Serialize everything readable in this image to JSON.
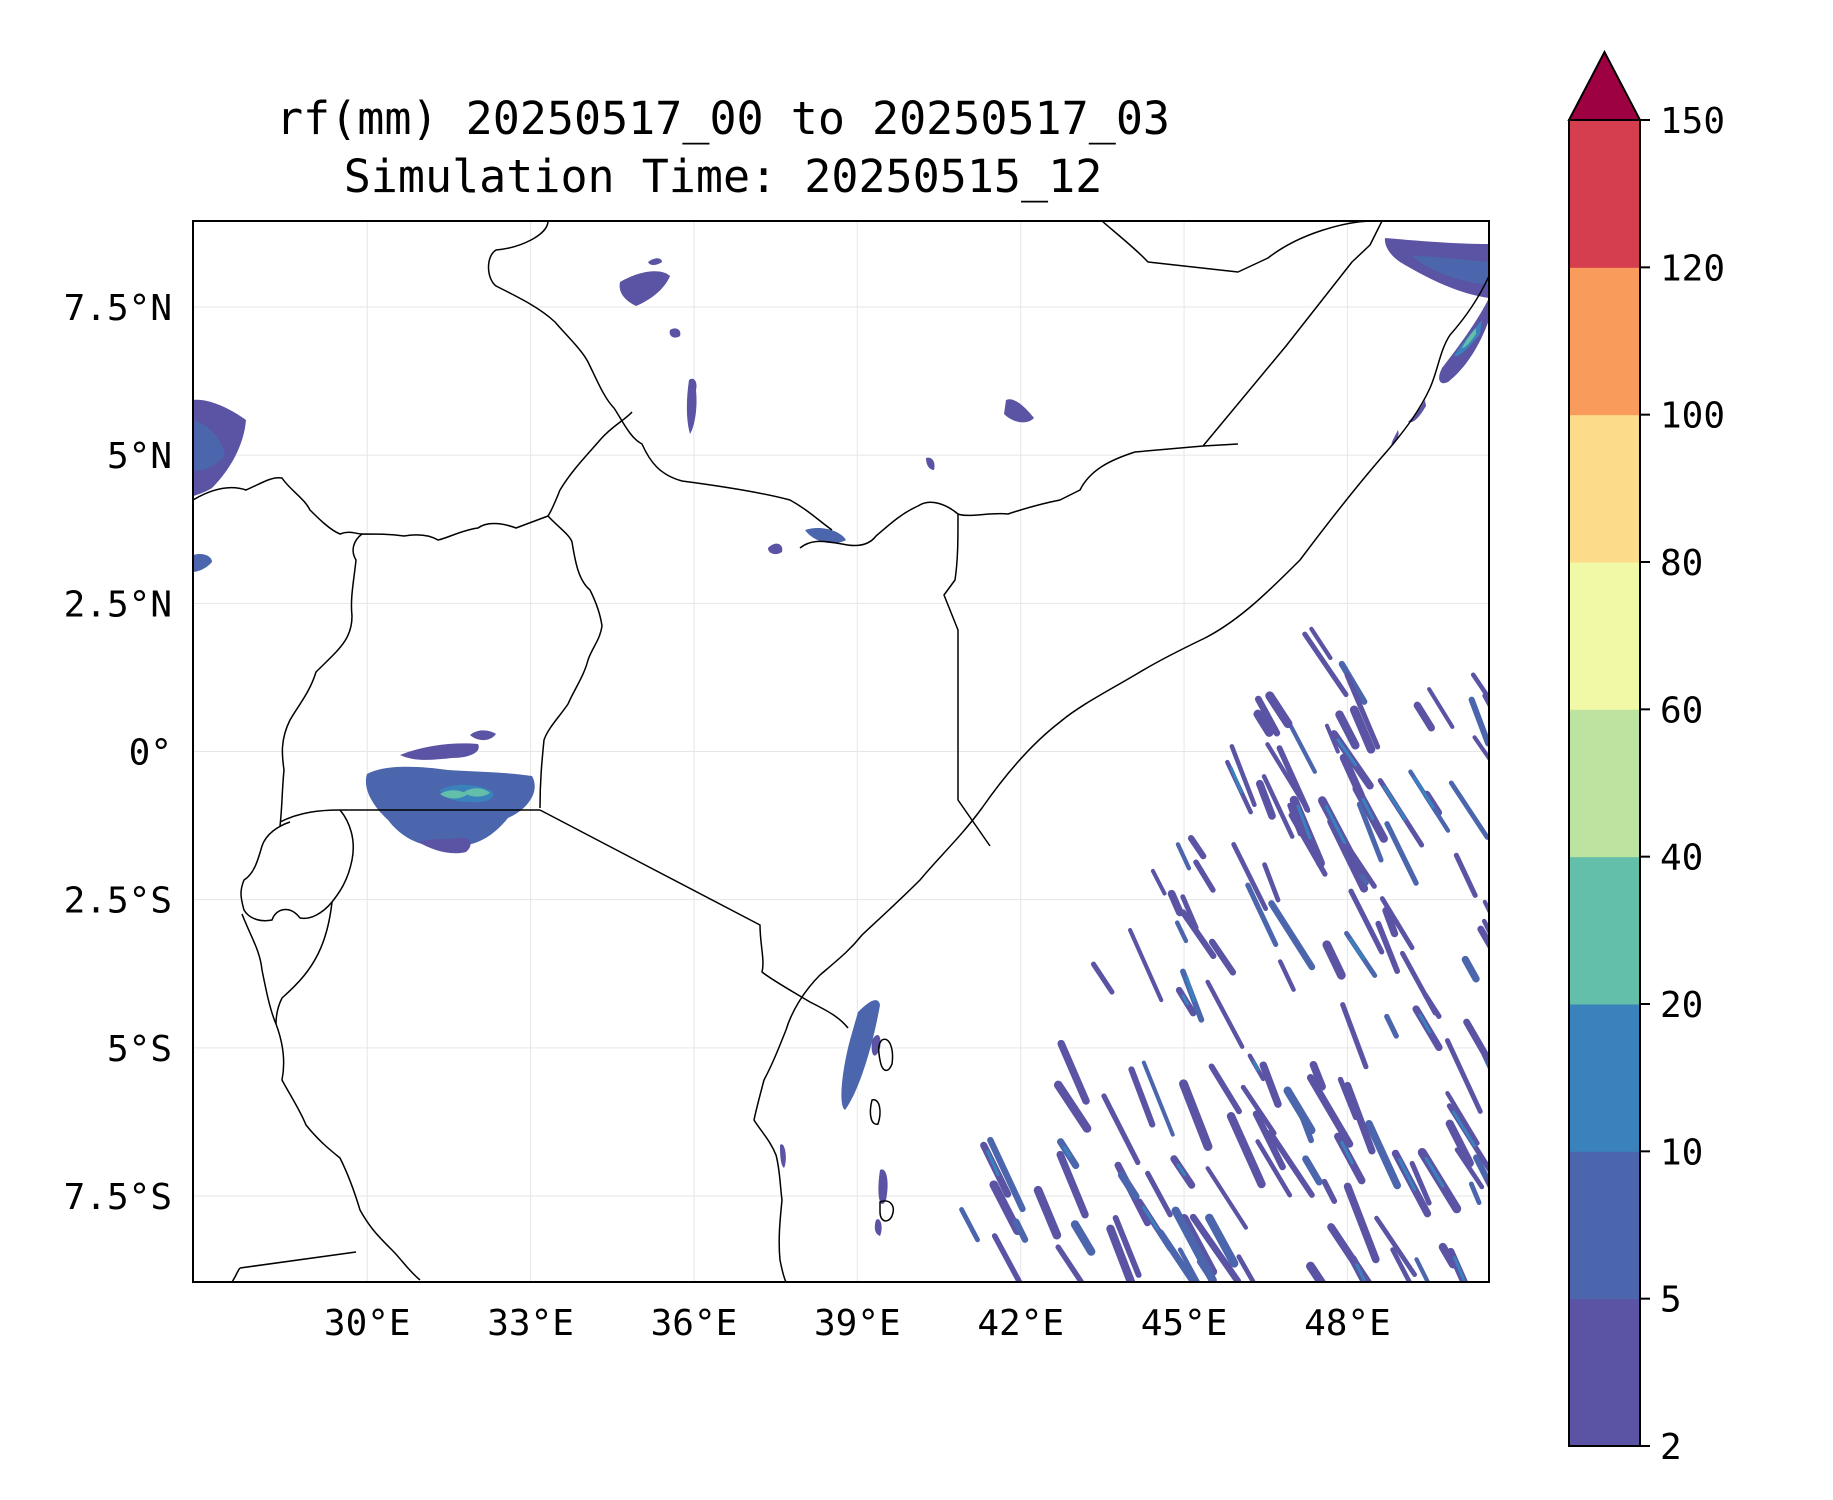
{
  "title_line1": "rf(mm) 20250517_00 to 20250517_03",
  "title_line2": "Simulation Time: 20250515_12",
  "map": {
    "variable": "rf(mm)",
    "lon_range": [
      26.8,
      50.6
    ],
    "lat_range": [
      -8.95,
      8.95
    ],
    "lon_ticks": [
      {
        "value": 30,
        "label": "30°E"
      },
      {
        "value": 33,
        "label": "33°E"
      },
      {
        "value": 36,
        "label": "36°E"
      },
      {
        "value": 39,
        "label": "39°E"
      },
      {
        "value": 42,
        "label": "42°E"
      },
      {
        "value": 45,
        "label": "45°E"
      },
      {
        "value": 48,
        "label": "48°E"
      }
    ],
    "lat_ticks": [
      {
        "value": 7.5,
        "label": "7.5°N"
      },
      {
        "value": 5,
        "label": "5°N"
      },
      {
        "value": 2.5,
        "label": "2.5°N"
      },
      {
        "value": 0,
        "label": "0°"
      },
      {
        "value": -2.5,
        "label": "2.5°S"
      },
      {
        "value": -5,
        "label": "5°S"
      },
      {
        "value": -7.5,
        "label": "7.5°S"
      }
    ],
    "grid": true
  },
  "colorbar": {
    "extend": "max",
    "levels": [
      2,
      5,
      10,
      20,
      40,
      60,
      80,
      100,
      120,
      150
    ],
    "labels": [
      "2",
      "5",
      "10",
      "20",
      "40",
      "60",
      "80",
      "100",
      "120",
      "150"
    ],
    "colors": [
      "#5b53a4",
      "#4b66ad",
      "#3a82bb",
      "#64bfaa",
      "#bce4a0",
      "#f1f8a6",
      "#fcdc8a",
      "#f99b5a",
      "#d53e4f"
    ],
    "extend_color": "#9e0142"
  }
}
